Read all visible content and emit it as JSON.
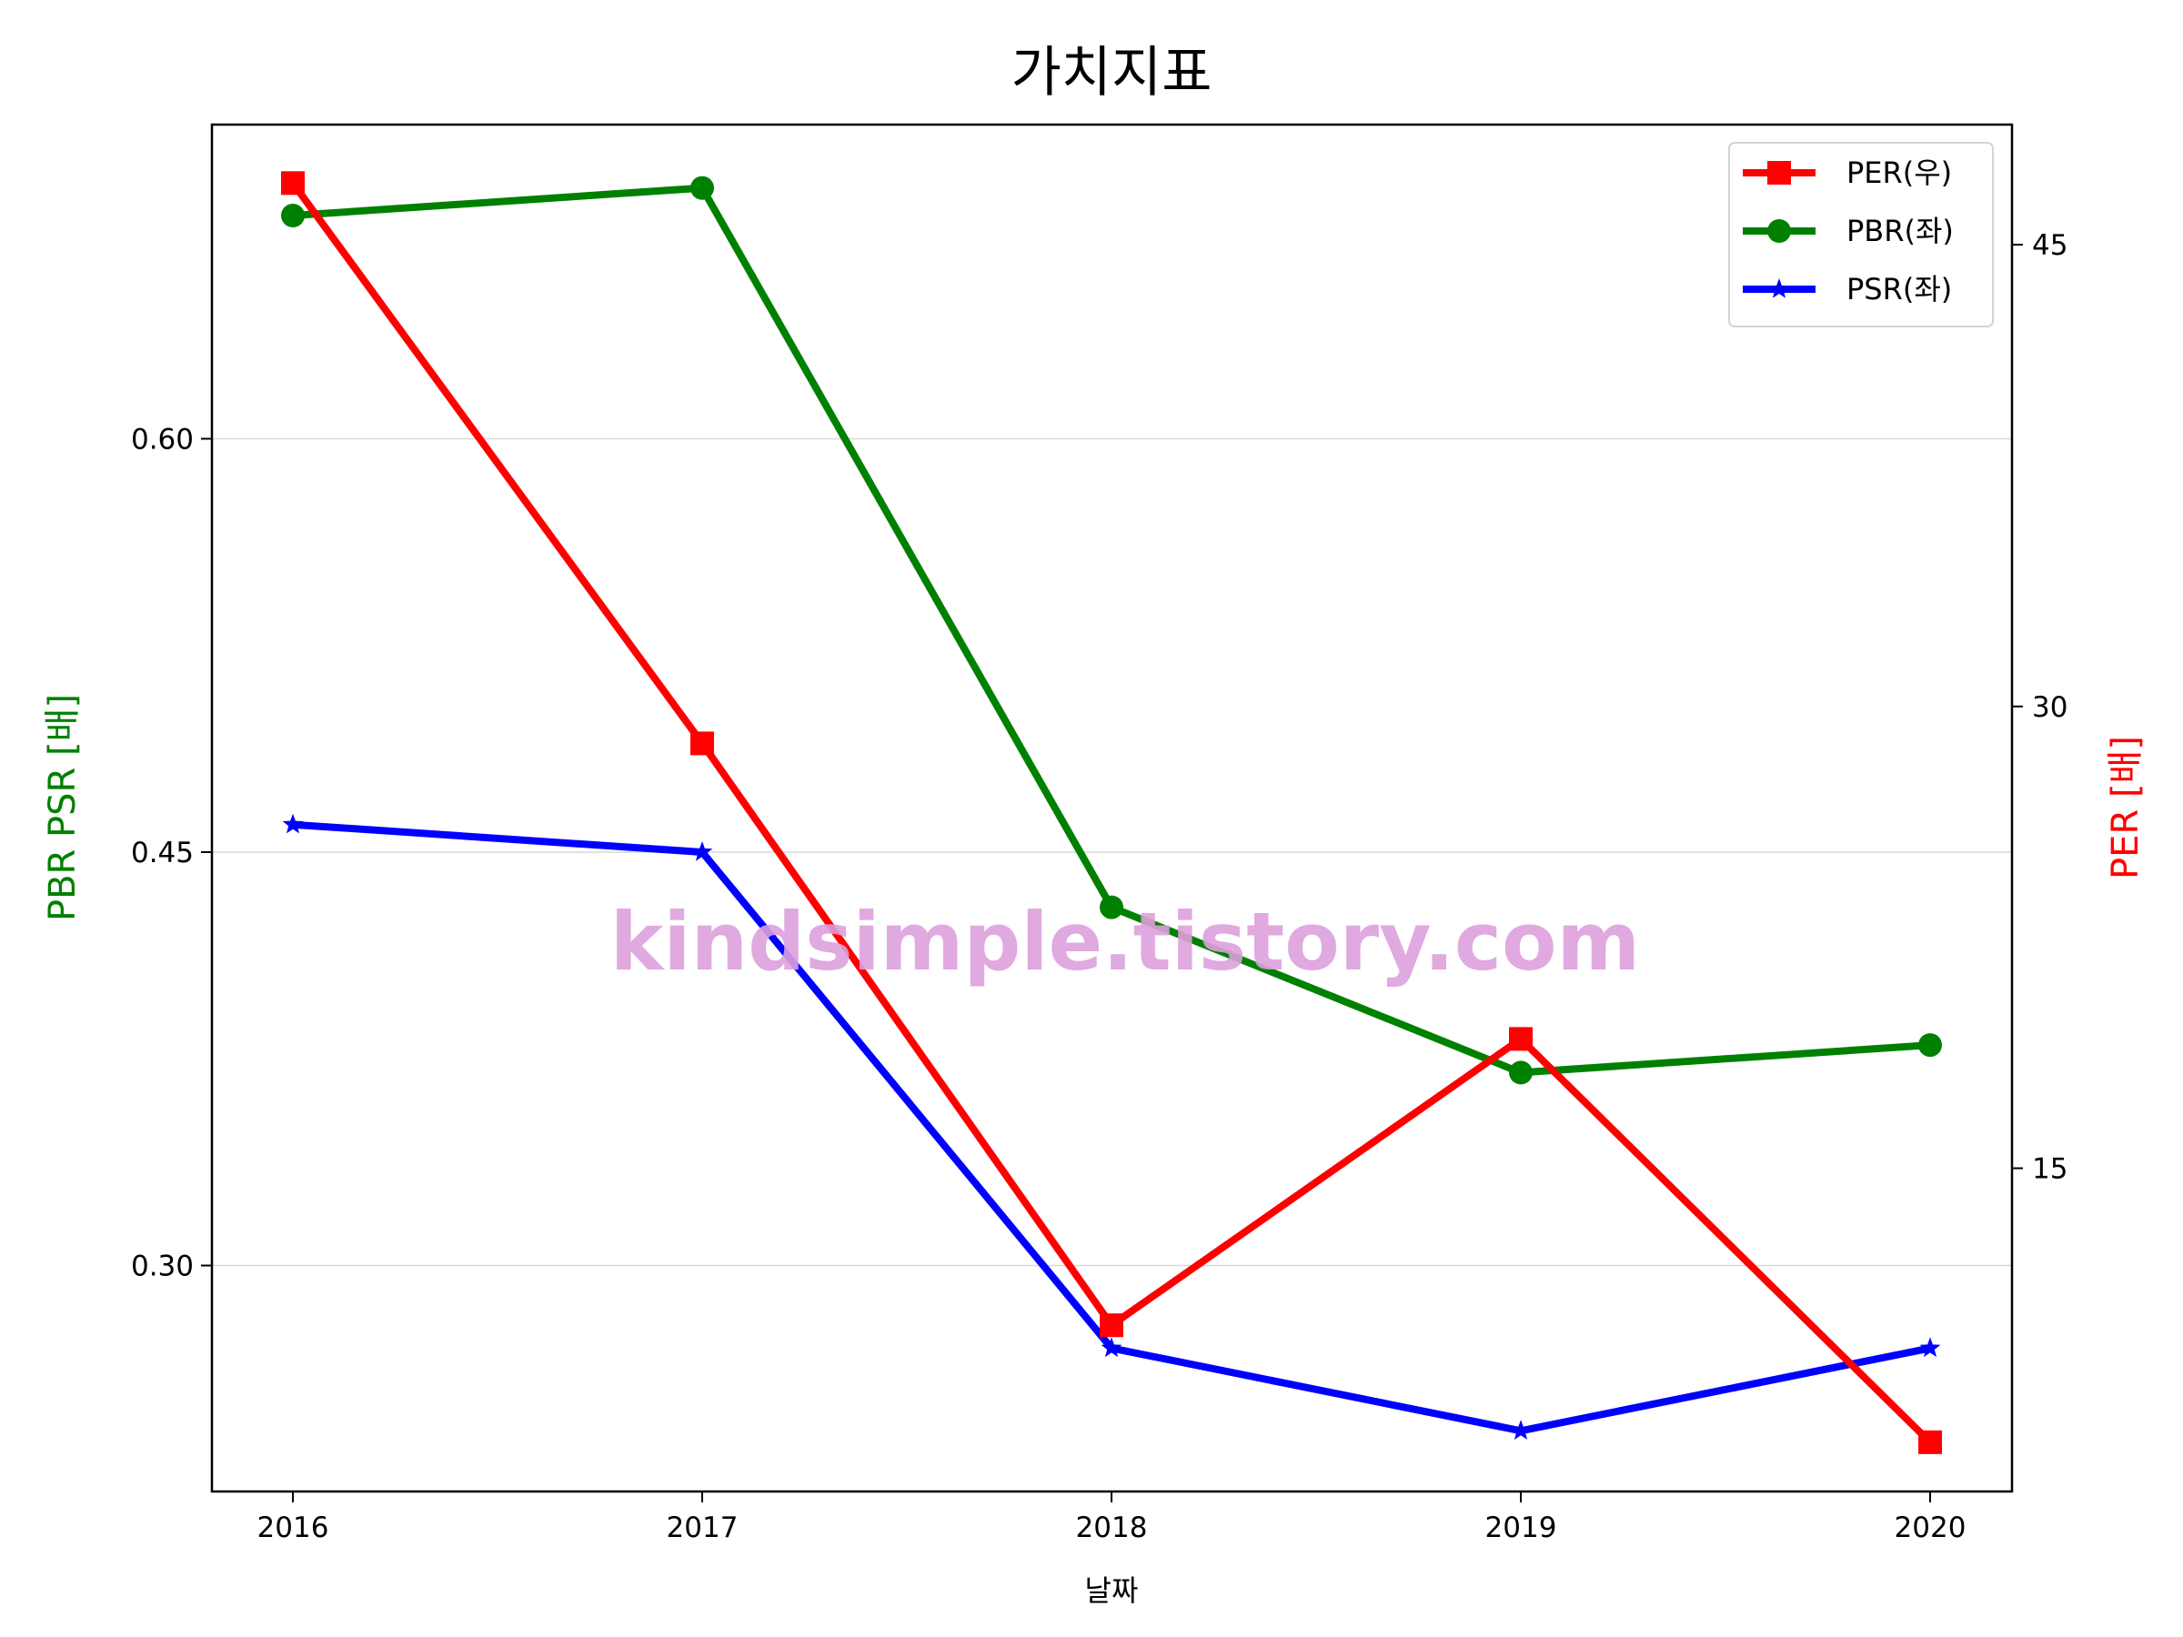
{
  "chart_data": {
    "type": "line",
    "title": "가치지표",
    "xlabel": "날짜",
    "ylabel_left": "PBR PSR [배]",
    "ylabel_right": "PER [배]",
    "categories": [
      "2016",
      "2017",
      "2018",
      "2019",
      "2020"
    ],
    "left_axis": {
      "ylim": [
        0.218,
        0.714
      ],
      "ticks": [
        "0.30",
        "0.45",
        "0.60"
      ],
      "tick_values": [
        0.3,
        0.45,
        0.6
      ],
      "grid": true
    },
    "right_axis": {
      "ylim": [
        4.5,
        48.9
      ],
      "ticks": [
        "15",
        "30",
        "45"
      ],
      "tick_values": [
        15,
        30,
        45
      ]
    },
    "series": [
      {
        "name": "PER(우)",
        "axis": "right",
        "color": "#ff0000",
        "marker": "square",
        "values": [
          47.0,
          28.8,
          9.9,
          19.2,
          6.1
        ]
      },
      {
        "name": "PBR(좌)",
        "axis": "left",
        "color": "#008000",
        "marker": "circle",
        "values": [
          0.681,
          0.691,
          0.43,
          0.37,
          0.38
        ]
      },
      {
        "name": "PSR(좌)",
        "axis": "left",
        "color": "#0000ff",
        "marker": "star",
        "values": [
          0.46,
          0.45,
          0.27,
          0.24,
          0.27
        ]
      }
    ],
    "legend_placement": "top-right",
    "watermark": "kindsimple.tistory.com"
  }
}
